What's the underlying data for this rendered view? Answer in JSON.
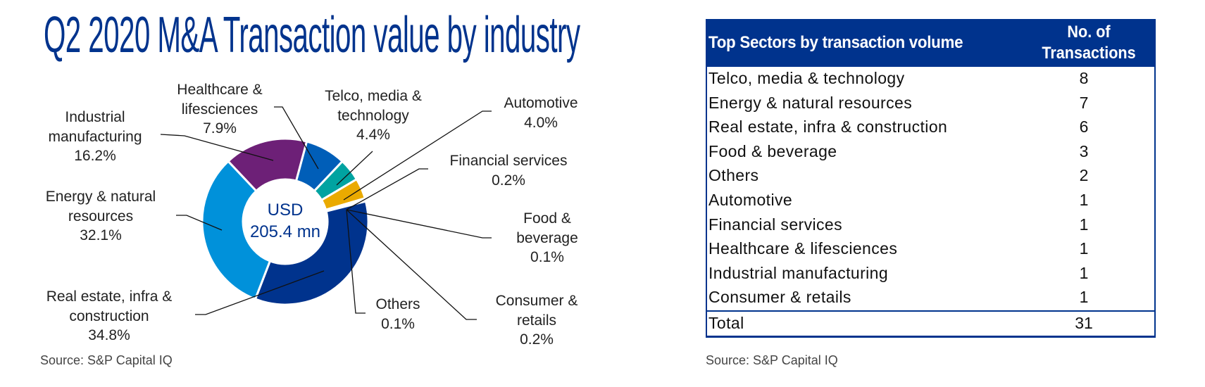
{
  "title": "Q2 2020 M&A Transaction value by industry",
  "chart_data": {
    "type": "pie",
    "variant": "donut",
    "title": "Q2 2020 M&A Transaction value by industry",
    "center_label": {
      "line1": "USD",
      "line2": "205.4 mn"
    },
    "unit": "%",
    "slices": [
      {
        "name": "Healthcare & lifesciences",
        "label_lines": [
          "Healthcare &",
          "lifesciences"
        ],
        "value": 7.9,
        "value_label": "7.9%",
        "color": "#005EB8"
      },
      {
        "name": "Telco, media & technology",
        "label_lines": [
          "Telco, media &",
          "technology"
        ],
        "value": 4.4,
        "value_label": "4.4%",
        "color": "#00A3A1"
      },
      {
        "name": "Automotive",
        "label_lines": [
          "Automotive"
        ],
        "value": 4.0,
        "value_label": "4.0%",
        "color": "#EAAA00"
      },
      {
        "name": "Financial services",
        "label_lines": [
          "Financial services"
        ],
        "value": 0.2,
        "value_label": "0.2%",
        "color": "#483698"
      },
      {
        "name": "Food & beverage",
        "label_lines": [
          "Food &",
          "beverage"
        ],
        "value": 0.1,
        "value_label": "0.1%",
        "color": "#470A68"
      },
      {
        "name": "Others",
        "label_lines": [
          "Others"
        ],
        "value": 0.1,
        "value_label": "0.1%",
        "color": "#9E3A8C"
      },
      {
        "name": "Consumer & retails",
        "label_lines": [
          "Consumer &",
          "retails"
        ],
        "value": 0.2,
        "value_label": "0.2%",
        "color": "#C6007E"
      },
      {
        "name": "Real estate, infra & construction",
        "label_lines": [
          "Real estate, infra &",
          "construction"
        ],
        "value": 34.8,
        "value_label": "34.8%",
        "color": "#00338D"
      },
      {
        "name": "Energy & natural resources",
        "label_lines": [
          "Energy & natural",
          "resources"
        ],
        "value": 32.1,
        "value_label": "32.1%",
        "color": "#0091DA"
      },
      {
        "name": "Industrial manufacturing",
        "label_lines": [
          "Industrial",
          "manufacturing"
        ],
        "value": 16.2,
        "value_label": "16.2%",
        "color": "#6D2077"
      }
    ],
    "source": "Source: S&P Capital IQ"
  },
  "table": {
    "header": {
      "sector": "Top Sectors by transaction volume",
      "count_line1": "No. of",
      "count_line2": "Transactions"
    },
    "rows": [
      {
        "sector": "Telco, media & technology",
        "count": "8"
      },
      {
        "sector": "Energy & natural resources",
        "count": "7"
      },
      {
        "sector": "Real estate, infra & construction",
        "count": "6"
      },
      {
        "sector": "Food & beverage",
        "count": "3"
      },
      {
        "sector": "Others",
        "count": "2"
      },
      {
        "sector": "Automotive",
        "count": "1"
      },
      {
        "sector": "Financial services",
        "count": "1"
      },
      {
        "sector": "Healthcare & lifesciences",
        "count": "1"
      },
      {
        "sector": "Industrial manufacturing",
        "count": "1"
      },
      {
        "sector": "Consumer & retails",
        "count": "1"
      }
    ],
    "total": {
      "label": "Total",
      "count": "31"
    },
    "header_color": "#00338D",
    "source": "Source: S&P Capital IQ"
  }
}
